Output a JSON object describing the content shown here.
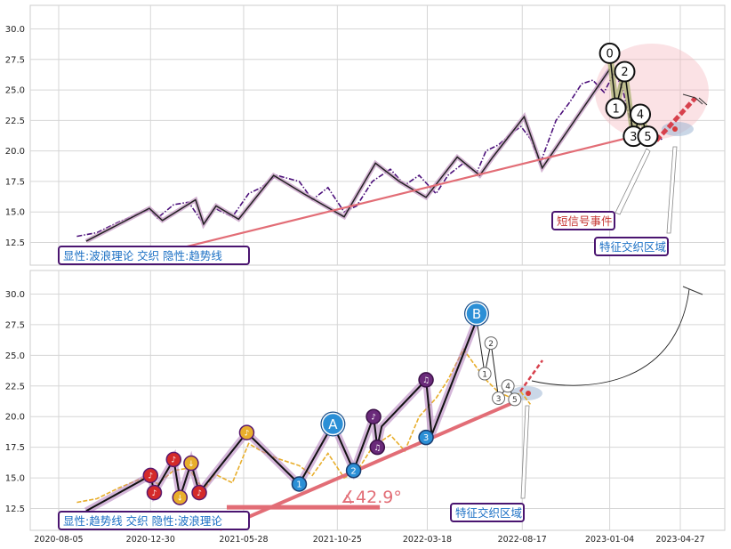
{
  "chart_data": [
    {
      "type": "line",
      "panel": "top",
      "ylim": [
        10.8,
        32.0
      ],
      "y_ticks": [
        "30.0",
        "27.5",
        "25.0",
        "22.5",
        "20.0",
        "17.5",
        "15.0",
        "12.5"
      ],
      "grid": true,
      "series": [
        {
          "style": "dash-dot purple",
          "x": [
            "2020-09-03",
            "2020-10-05",
            "2020-11-10",
            "2020-12-28",
            "2021-01-10",
            "2021-02-05",
            "2021-03-01",
            "2021-03-25",
            "2021-04-12",
            "2021-05-10",
            "2021-06-05",
            "2021-06-25",
            "2021-07-20",
            "2021-08-25",
            "2021-09-15",
            "2021-10-10",
            "2021-11-05",
            "2021-11-25",
            "2021-12-20",
            "2022-01-18",
            "2022-02-10",
            "2022-03-05",
            "2022-04-01",
            "2022-04-20",
            "2022-05-15",
            "2022-06-05",
            "2022-06-20",
            "2022-07-10",
            "2022-08-01",
            "2022-08-15",
            "2022-08-30",
            "2022-09-15",
            "2022-10-10",
            "2022-11-01",
            "2022-11-20",
            "2022-12-08",
            "2022-12-26",
            "2023-01-12",
            "2023-01-25",
            "2023-02-08",
            "2023-02-20",
            "2023-03-05",
            "2023-03-18",
            "2023-03-30"
          ],
          "values": [
            13.0,
            13.3,
            14.2,
            15.2,
            14.5,
            15.6,
            15.8,
            14.0,
            15.3,
            14.6,
            16.5,
            17.0,
            18.0,
            17.5,
            16.0,
            17.0,
            15.0,
            15.5,
            17.5,
            18.5,
            17.2,
            18.0,
            16.5,
            18.0,
            19.0,
            18.2,
            20.0,
            20.5,
            21.5,
            22.0,
            21.0,
            19.0,
            22.5,
            24.0,
            25.5,
            25.8,
            24.8,
            26.5,
            25.0,
            22.0,
            21.8,
            21.3,
            20.8,
            21.0
          ]
        },
        {
          "style": "wave line black",
          "x": [
            "2020-09-18",
            "2020-12-28",
            "2021-01-18",
            "2021-03-12",
            "2021-03-25",
            "2021-04-14",
            "2021-05-20",
            "2021-07-15",
            "2021-09-01",
            "2021-11-05",
            "2021-12-25",
            "2022-02-01",
            "2022-03-16",
            "2022-05-05",
            "2022-06-10",
            "2022-07-01",
            "2022-08-20",
            "2022-09-18",
            "2023-01-04"
          ],
          "values": [
            12.6,
            15.3,
            14.3,
            16.0,
            14.0,
            15.5,
            14.4,
            18.0,
            16.5,
            14.6,
            19.0,
            17.5,
            16.2,
            19.5,
            18.0,
            19.5,
            22.8,
            18.6,
            26.7
          ]
        },
        {
          "style": "wave line green",
          "x": [
            "2023-01-04",
            "2023-01-14",
            "2023-01-28",
            "2023-02-11",
            "2023-02-22",
            "2023-03-06",
            "2023-03-12"
          ],
          "values": [
            28.0,
            23.5,
            26.5,
            21.2,
            23.0,
            21.2,
            21.7
          ]
        },
        {
          "style": "trend line red",
          "x": [
            "2020-11-10",
            "2023-03-16"
          ],
          "values": [
            10.8,
            21.6
          ]
        }
      ],
      "markers": [
        {
          "label": "0",
          "x": "2023-01-04",
          "y": 28.0
        },
        {
          "label": "1",
          "x": "2023-01-14",
          "y": 23.5
        },
        {
          "label": "2",
          "x": "2023-01-28",
          "y": 26.5
        },
        {
          "label": "3",
          "x": "2023-02-11",
          "y": 21.2
        },
        {
          "label": "4",
          "x": "2023-02-22",
          "y": 23.0
        },
        {
          "label": "5",
          "x": "2023-03-06",
          "y": 21.2
        }
      ],
      "annotations": {
        "legend_box": "显性:波浪理论 交织 隐性:趋势线",
        "short_signal": "短信号事件",
        "feature_zone": "特征交织区域"
      }
    },
    {
      "type": "line",
      "panel": "bottom",
      "ylim": [
        10.8,
        32.0
      ],
      "y_ticks": [
        "30.0",
        "27.5",
        "25.0",
        "22.5",
        "20.0",
        "17.5",
        "15.0",
        "12.5"
      ],
      "x_ticks": [
        "2020-08-05",
        "2020-12-30",
        "2021-05-28",
        "2021-10-25",
        "2022-03-18",
        "2022-08-17",
        "2023-01-04",
        "2023-04-27"
      ],
      "grid": true,
      "series": [
        {
          "style": "dashed orange",
          "x": [
            "2020-09-03",
            "2020-10-05",
            "2020-11-10",
            "2020-12-28",
            "2021-01-10",
            "2021-02-05",
            "2021-03-01",
            "2021-03-25",
            "2021-04-12",
            "2021-05-10",
            "2021-06-05",
            "2021-06-25",
            "2021-07-20",
            "2021-08-25",
            "2021-09-15",
            "2021-10-10",
            "2021-11-05",
            "2021-11-25",
            "2021-12-20",
            "2022-01-18",
            "2022-02-10",
            "2022-03-05",
            "2022-04-01",
            "2022-04-20",
            "2022-05-15",
            "2022-06-05",
            "2022-06-20",
            "2022-07-10",
            "2022-08-01",
            "2022-08-15",
            "2022-08-30"
          ],
          "values": [
            13.0,
            13.3,
            14.2,
            15.2,
            14.5,
            15.6,
            15.8,
            14.0,
            15.3,
            14.6,
            17.8,
            17.2,
            16.6,
            16.0,
            15.2,
            17.0,
            15.0,
            15.5,
            17.5,
            18.5,
            17.2,
            20.0,
            21.5,
            23.0,
            25.5,
            24.0,
            23.0,
            22.0,
            21.5,
            22.0,
            21.0
          ]
        },
        {
          "style": "wave line black",
          "x": [
            "2020-09-18",
            "2020-12-30",
            "2021-01-05",
            "2021-02-05",
            "2021-02-15",
            "2021-03-05",
            "2021-03-18",
            "2021-06-02",
            "2021-08-25",
            "2021-10-18",
            "2021-11-20",
            "2021-12-22",
            "2021-12-28",
            "2022-01-04",
            "2022-03-16",
            "2022-03-25",
            "2022-06-05"
          ],
          "values": [
            12.3,
            15.2,
            13.8,
            16.5,
            13.4,
            16.2,
            13.8,
            18.7,
            14.5,
            19.4,
            15.6,
            20.0,
            17.5,
            19.2,
            23.0,
            18.5,
            27.9
          ]
        },
        {
          "style": "wave line black thin",
          "x": [
            "2022-06-05",
            "2022-06-18",
            "2022-06-28",
            "2022-07-10",
            "2022-07-25",
            "2022-08-05"
          ],
          "values": [
            27.9,
            23.5,
            26.0,
            21.5,
            22.5,
            21.4
          ]
        },
        {
          "style": "trend line red",
          "x": [
            "2021-04-20",
            "2022-08-10"
          ],
          "values": [
            10.8,
            21.3
          ]
        },
        {
          "style": "angle baseline red",
          "x": [
            "2021-05-01",
            "2022-01-01"
          ],
          "values": [
            12.6,
            12.6
          ]
        }
      ],
      "markers": [
        {
          "label": "♪",
          "x": "2020-12-30",
          "y": 15.2
        },
        {
          "label": "♪",
          "x": "2021-01-05",
          "y": 13.8
        },
        {
          "label": "♪",
          "x": "2021-02-05",
          "y": 16.5
        },
        {
          "label": "↓",
          "x": "2021-02-15",
          "y": 13.4
        },
        {
          "label": "↓",
          "x": "2021-03-05",
          "y": 16.2
        },
        {
          "label": "♪",
          "x": "2021-03-18",
          "y": 13.8
        },
        {
          "label": "♪",
          "x": "2021-06-02",
          "y": 18.7
        },
        {
          "label": "1",
          "x": "2021-08-25",
          "y": 14.5
        },
        {
          "label": "A",
          "x": "2021-10-18",
          "y": 19.4
        },
        {
          "label": "2",
          "x": "2021-11-20",
          "y": 15.6
        },
        {
          "label": "♪",
          "x": "2021-12-22",
          "y": 20.0
        },
        {
          "label": "♫",
          "x": "2021-12-28",
          "y": 17.5
        },
        {
          "label": "♫",
          "x": "2022-03-16",
          "y": 23.0
        },
        {
          "label": "3",
          "x": "2022-03-16",
          "y": 18.3
        },
        {
          "label": "B",
          "x": "2022-06-05",
          "y": 28.4
        },
        {
          "label": "1",
          "x": "2022-06-18",
          "y": 23.5
        },
        {
          "label": "2",
          "x": "2022-06-28",
          "y": 26.0
        },
        {
          "label": "3",
          "x": "2022-07-10",
          "y": 21.5
        },
        {
          "label": "4",
          "x": "2022-07-25",
          "y": 22.5
        },
        {
          "label": "5",
          "x": "2022-08-05",
          "y": 21.4
        }
      ],
      "annotations": {
        "legend_box": "显性:趋势线 交织 隐性:波浪理论",
        "angle": "∡42.9°",
        "feature_zone": "特征交织区域"
      }
    }
  ]
}
